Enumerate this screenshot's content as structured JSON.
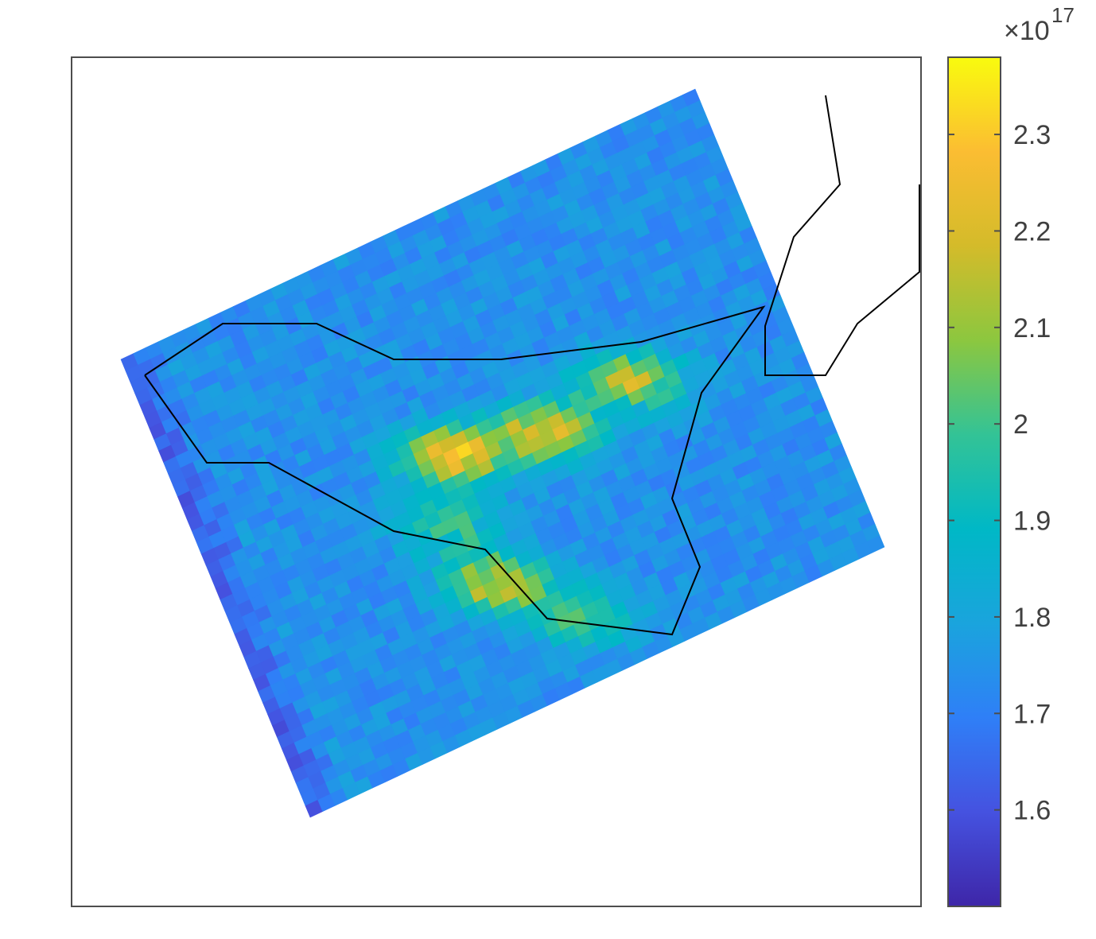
{
  "chart_data": {
    "type": "heatmap",
    "title": "",
    "xlabel": "",
    "ylabel": "",
    "grid": false,
    "axes_ticks_visible": false,
    "colormap": "parula",
    "colormap_stops": [
      "#3e26a8",
      "#4552e0",
      "#2f7ff7",
      "#1aa4dd",
      "#00b8c6",
      "#33c396",
      "#8cc73f",
      "#d4bb2a",
      "#fbbd32",
      "#f9fb0e"
    ],
    "colorbar": {
      "multiplier_base": "×10",
      "multiplier_exponent": "17",
      "range": [
        1.5,
        2.38
      ],
      "ticks": [
        1.6,
        1.7,
        1.8,
        1.9,
        2.0,
        2.1,
        2.2,
        2.3
      ],
      "tick_labels": [
        "1.6",
        "1.7",
        "1.8",
        "1.9",
        "2",
        "2.1",
        "2.2",
        "2.3"
      ]
    },
    "field": {
      "description": "rotated gridded swath of values",
      "grid_rows": 40,
      "grid_cols": 46,
      "background_value": 1.74,
      "hotspots": [
        {
          "center": [
            0.56,
            0.44
          ],
          "value": 2.25
        },
        {
          "center": [
            0.45,
            0.47
          ],
          "value": 2.3
        },
        {
          "center": [
            0.66,
            0.38
          ],
          "value": 2.17
        },
        {
          "center": [
            0.5,
            0.62
          ],
          "value": 2.2
        },
        {
          "center": [
            0.44,
            0.55
          ],
          "value": 2.02
        },
        {
          "center": [
            0.6,
            0.66
          ],
          "value": 2.03
        }
      ]
    },
    "outline_color": "#000000"
  }
}
